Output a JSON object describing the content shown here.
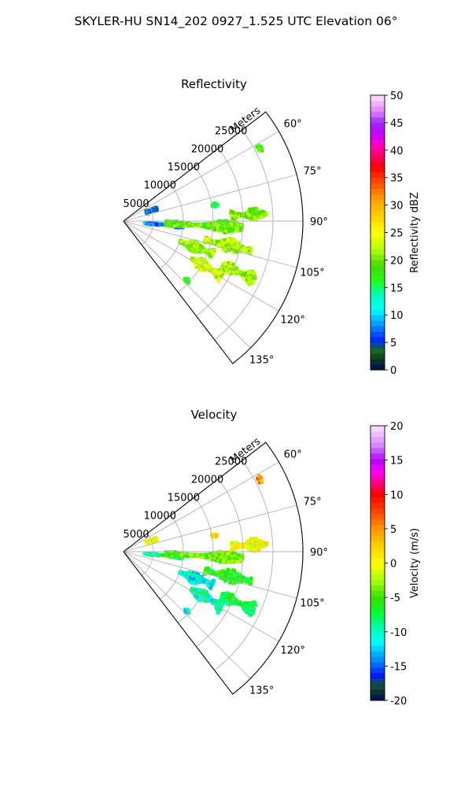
{
  "figure_title": "SKYLER-HU  SN14_202  0927_1.525 UTC Elevation 06°",
  "chart_data": [
    {
      "type": "polar-sector-radar",
      "title": "Reflectivity",
      "radial_axis_label": "Meters",
      "radial_range": [
        0,
        30000
      ],
      "radial_ticks": [
        5000,
        10000,
        15000,
        20000,
        25000
      ],
      "radial_tick_labels": [
        "5000",
        "10000",
        "15000",
        "20000",
        "25000"
      ],
      "azimuth_range_deg": [
        52.5,
        142.5
      ],
      "azimuth_ticks_deg": [
        60,
        75,
        90,
        105,
        120,
        135
      ],
      "azimuth_tick_labels": [
        "60°",
        "75°",
        "90°",
        "105°",
        "120°",
        "135°"
      ],
      "grid": true,
      "colorbar": {
        "label": "Reflectivity dBZ",
        "range": [
          0,
          50
        ],
        "ticks": [
          0,
          5,
          10,
          15,
          20,
          25,
          30,
          35,
          40,
          45,
          50
        ],
        "tick_labels": [
          "0",
          "5",
          "10",
          "15",
          "20",
          "25",
          "30",
          "35",
          "40",
          "45",
          "50"
        ],
        "stops": [
          {
            "v": 0,
            "c": "#000a5a"
          },
          {
            "v": 2,
            "c": "#0c3a1a"
          },
          {
            "v": 4,
            "c": "#1a7a2a"
          },
          {
            "v": 5,
            "c": "#0014ff"
          },
          {
            "v": 7,
            "c": "#0064ff"
          },
          {
            "v": 9,
            "c": "#00b4ff"
          },
          {
            "v": 11,
            "c": "#00ffff"
          },
          {
            "v": 14,
            "c": "#00ffb0"
          },
          {
            "v": 16,
            "c": "#22ff22"
          },
          {
            "v": 19,
            "c": "#44d800"
          },
          {
            "v": 22,
            "c": "#b4ff10"
          },
          {
            "v": 25,
            "c": "#ffff00"
          },
          {
            "v": 28,
            "c": "#ffd200"
          },
          {
            "v": 31,
            "c": "#ffa000"
          },
          {
            "v": 34,
            "c": "#ff5000"
          },
          {
            "v": 37,
            "c": "#ff0000"
          },
          {
            "v": 39,
            "c": "#ff0064"
          },
          {
            "v": 41,
            "c": "#ff00c8"
          },
          {
            "v": 43,
            "c": "#c800ff"
          },
          {
            "v": 45,
            "c": "#9a28ff"
          },
          {
            "v": 47,
            "c": "#e080ff"
          },
          {
            "v": 50,
            "c": "#ffe6ff"
          }
        ]
      },
      "echoes": [
        {
          "az": 95,
          "r_min": 3500,
          "r_max": 10000,
          "spread": 2.5,
          "value": 8
        },
        {
          "az": 93,
          "r_min": 7000,
          "r_max": 20000,
          "spread": 3.5,
          "value": 20
        },
        {
          "az": 87,
          "r_min": 18000,
          "r_max": 24000,
          "spread": 3,
          "value": 21
        },
        {
          "az": 103,
          "r_min": 14000,
          "r_max": 22000,
          "spread": 4,
          "value": 22
        },
        {
          "az": 110,
          "r_min": 10000,
          "r_max": 16000,
          "spread": 4.5,
          "value": 21
        },
        {
          "az": 119,
          "r_min": 13000,
          "r_max": 19000,
          "spread": 4,
          "value": 23
        },
        {
          "az": 114,
          "r_min": 18000,
          "r_max": 24000,
          "spread": 3,
          "value": 22
        },
        {
          "az": 69,
          "r_min": 4000,
          "r_max": 6000,
          "spread": 4,
          "value": 6
        },
        {
          "az": 62,
          "r_min": 25500,
          "r_max": 26200,
          "spread": 1.5,
          "value": 19
        },
        {
          "az": 80,
          "r_min": 15000,
          "r_max": 16000,
          "spread": 1.5,
          "value": 15
        },
        {
          "az": 133,
          "r_min": 14000,
          "r_max": 15000,
          "spread": 1.5,
          "value": 18
        }
      ]
    },
    {
      "type": "polar-sector-radar",
      "title": "Velocity",
      "radial_axis_label": "Meters",
      "radial_range": [
        0,
        30000
      ],
      "radial_ticks": [
        5000,
        10000,
        15000,
        20000,
        25000
      ],
      "radial_tick_labels": [
        "5000",
        "10000",
        "15000",
        "20000",
        "25000"
      ],
      "azimuth_range_deg": [
        52.5,
        142.5
      ],
      "azimuth_ticks_deg": [
        60,
        75,
        90,
        105,
        120,
        135
      ],
      "azimuth_tick_labels": [
        "60°",
        "75°",
        "90°",
        "105°",
        "120°",
        "135°"
      ],
      "grid": true,
      "colorbar": {
        "label": "Velocity (m/s)",
        "range": [
          -20,
          20
        ],
        "ticks": [
          -20,
          -15,
          -10,
          -5,
          0,
          5,
          10,
          15,
          20
        ],
        "tick_labels": [
          "-20",
          "-15",
          "-10",
          "-5",
          "0",
          "5",
          "10",
          "15",
          "20"
        ],
        "stops": [
          {
            "v": -20,
            "c": "#000a5a"
          },
          {
            "v": -19,
            "c": "#0a2a3a"
          },
          {
            "v": -17.5,
            "c": "#1a5a3a"
          },
          {
            "v": -16.5,
            "c": "#0014ff"
          },
          {
            "v": -14.5,
            "c": "#0078ff"
          },
          {
            "v": -13,
            "c": "#00b8ff"
          },
          {
            "v": -11.5,
            "c": "#00ffff"
          },
          {
            "v": -9.5,
            "c": "#00ffb4"
          },
          {
            "v": -7.5,
            "c": "#00ff40"
          },
          {
            "v": -5,
            "c": "#33e000"
          },
          {
            "v": -2.5,
            "c": "#aaff10"
          },
          {
            "v": 0,
            "c": "#ffff00"
          },
          {
            "v": 2.5,
            "c": "#ffd000"
          },
          {
            "v": 5,
            "c": "#ff9600"
          },
          {
            "v": 7.5,
            "c": "#ff4600"
          },
          {
            "v": 10,
            "c": "#ff0000"
          },
          {
            "v": 12,
            "c": "#ff0096"
          },
          {
            "v": 13.5,
            "c": "#ff00ff"
          },
          {
            "v": 15,
            "c": "#b400ff"
          },
          {
            "v": 17,
            "c": "#d080ff"
          },
          {
            "v": 20,
            "c": "#ffe6ff"
          }
        ]
      },
      "echoes": [
        {
          "az": 95,
          "r_min": 3500,
          "r_max": 10000,
          "spread": 2.5,
          "value": -9
        },
        {
          "az": 93,
          "r_min": 7000,
          "r_max": 20000,
          "spread": 3.5,
          "value": -4
        },
        {
          "az": 87,
          "r_min": 18000,
          "r_max": 24000,
          "spread": 3,
          "value": 0
        },
        {
          "az": 103,
          "r_min": 14000,
          "r_max": 22000,
          "spread": 4,
          "value": -6
        },
        {
          "az": 110,
          "r_min": 10000,
          "r_max": 16000,
          "spread": 4.5,
          "value": -11
        },
        {
          "az": 119,
          "r_min": 13000,
          "r_max": 19000,
          "spread": 4,
          "value": -10
        },
        {
          "az": 114,
          "r_min": 18000,
          "r_max": 24000,
          "spread": 3,
          "value": -7
        },
        {
          "az": 69,
          "r_min": 4000,
          "r_max": 6000,
          "spread": 4,
          "value": 0
        },
        {
          "az": 62,
          "r_min": 25500,
          "r_max": 26200,
          "spread": 1.5,
          "value": 5
        },
        {
          "az": 80,
          "r_min": 15000,
          "r_max": 16000,
          "spread": 1.5,
          "value": 1
        },
        {
          "az": 133,
          "r_min": 14000,
          "r_max": 15000,
          "spread": 1.5,
          "value": -11
        }
      ]
    }
  ]
}
